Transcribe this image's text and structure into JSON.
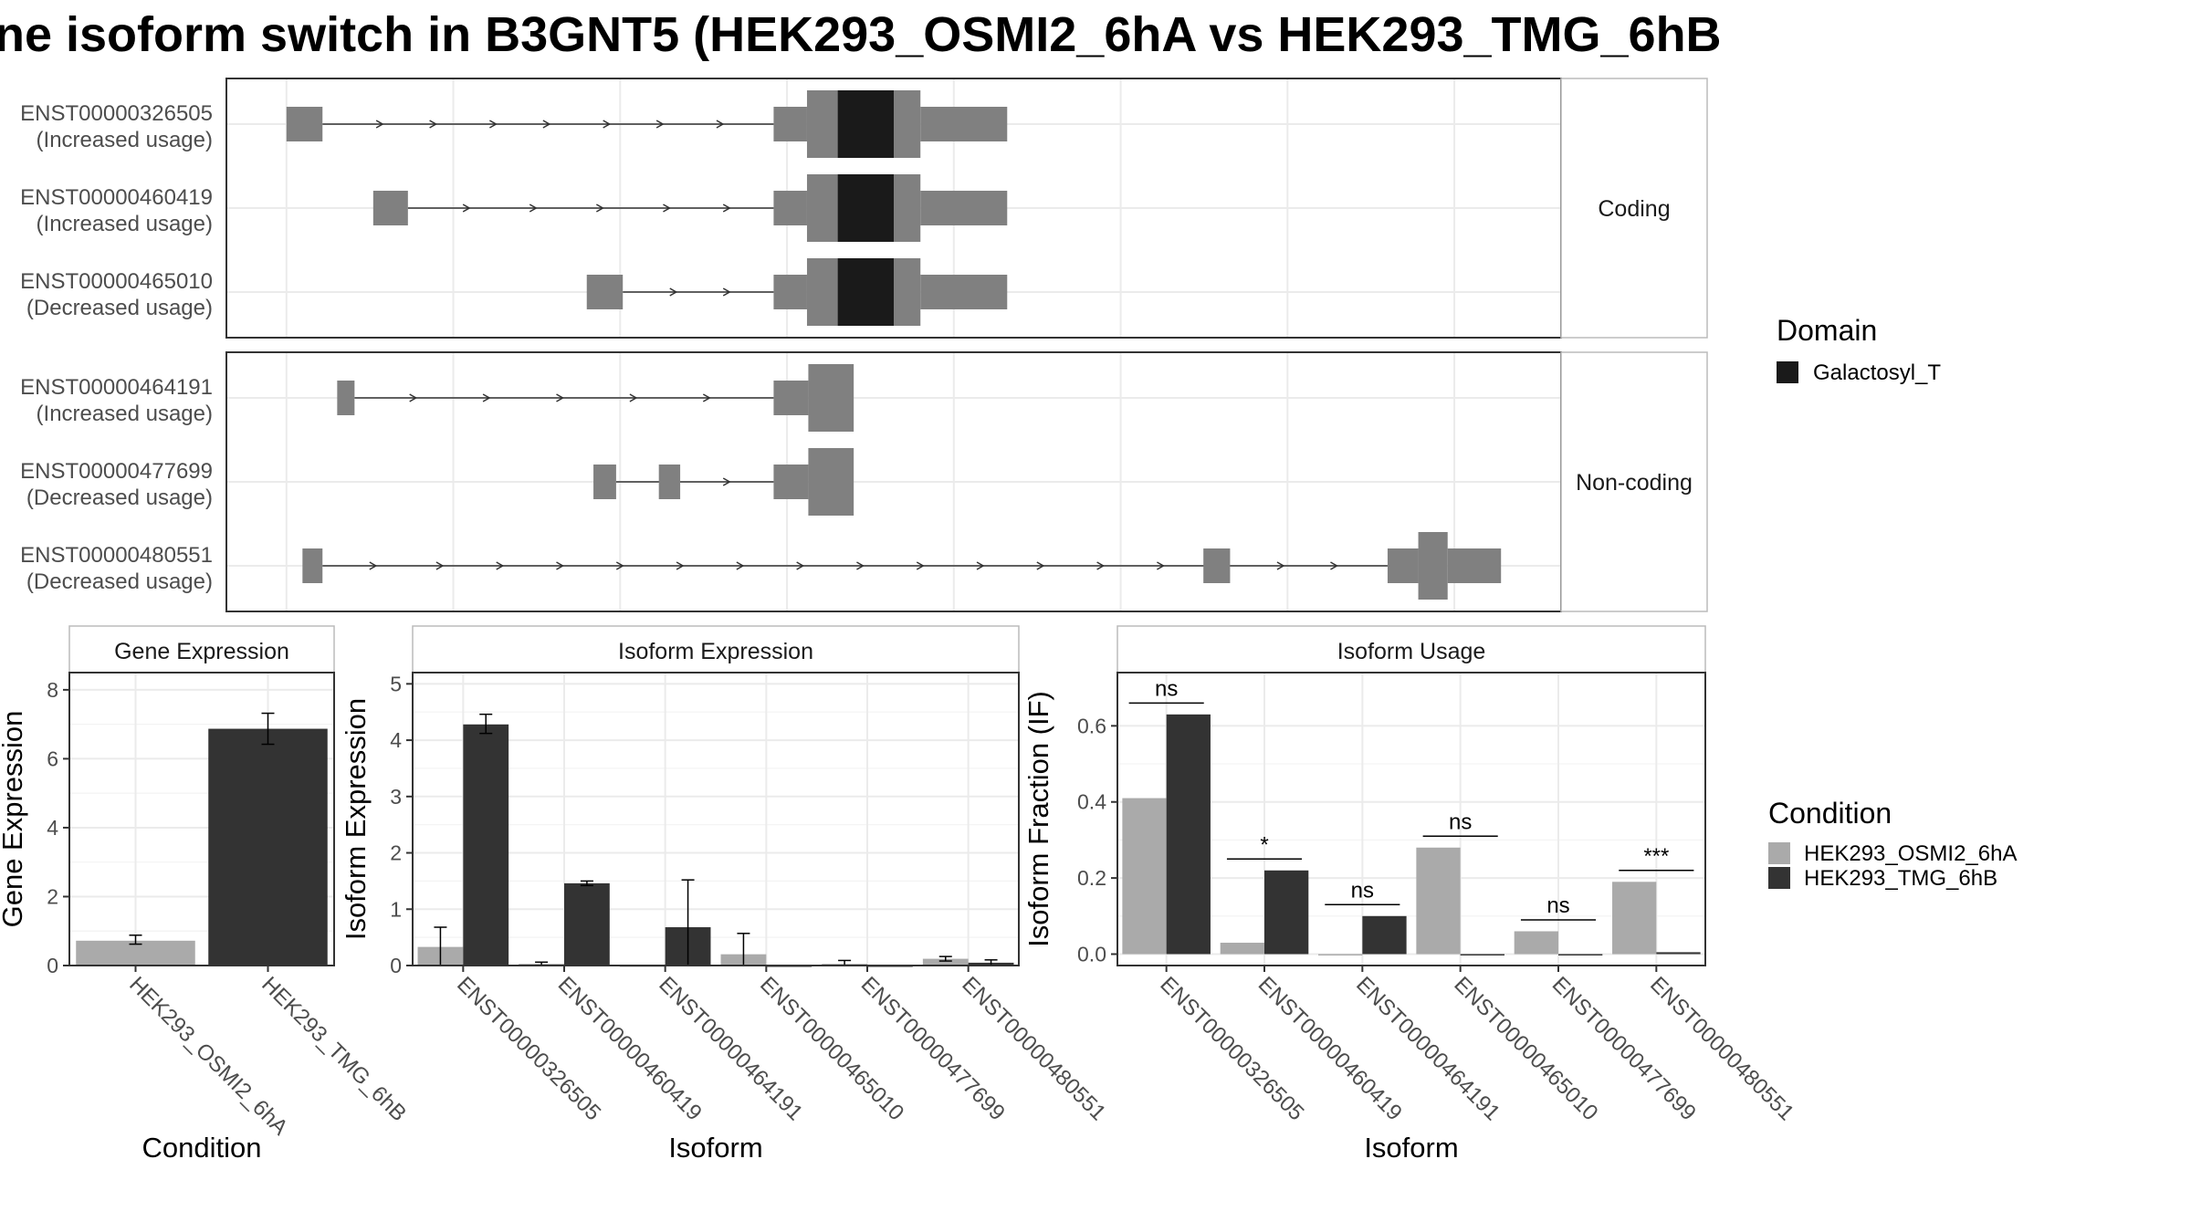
{
  "title": "ne isoform switch in B3GNT5 (HEK293_OSMI2_6hA vs HEK293_TMG_6hB",
  "colors": {
    "exon": "#808080",
    "domain": "#1a1a1a",
    "cond_a": "#aaaaaa",
    "cond_b": "#333333",
    "grid": "#ebebeb",
    "line": "#333333"
  },
  "legends": {
    "domain": {
      "title": "Domain",
      "items": [
        {
          "label": "Galactosyl_T",
          "color": "#1a1a1a"
        }
      ]
    },
    "condition": {
      "title": "Condition",
      "items": [
        {
          "label": "HEK293_OSMI2_6hA",
          "color": "#aaaaaa"
        },
        {
          "label": "HEK293_TMG_6hB",
          "color": "#333333"
        }
      ]
    }
  },
  "transcripts": {
    "x_range": [
      0,
      100
    ],
    "x_grid": [
      4.5,
      17,
      29.5,
      42,
      54.5,
      67,
      79.5,
      92
    ],
    "panels": [
      {
        "strip": "Coding",
        "tracks": [
          {
            "id": "ENST00000326505",
            "note": "(Increased usage)",
            "exons": [
              [
                4.5,
                7.2,
                "small"
              ],
              [
                41,
                43.5,
                "utr"
              ],
              [
                43.5,
                45.8,
                "cds"
              ],
              [
                45.8,
                50,
                "domain"
              ],
              [
                50,
                52,
                "cds"
              ],
              [
                52,
                58.5,
                "utr"
              ]
            ],
            "intron": [
              7.2,
              41
            ],
            "arrows": [
              11.5,
              15.5,
              20,
              24,
              28.5,
              32.5,
              37
            ]
          },
          {
            "id": "ENST00000460419",
            "note": "(Increased usage)",
            "exons": [
              [
                11,
                13.6,
                "small"
              ],
              [
                41,
                43.5,
                "utr"
              ],
              [
                43.5,
                45.8,
                "cds"
              ],
              [
                45.8,
                50,
                "domain"
              ],
              [
                50,
                52,
                "cds"
              ],
              [
                52,
                58.5,
                "utr"
              ]
            ],
            "intron": [
              13.6,
              41
            ],
            "arrows": [
              18,
              23,
              28,
              33,
              37.5
            ]
          },
          {
            "id": "ENST00000465010",
            "note": "(Decreased usage)",
            "exons": [
              [
                27,
                29.7,
                "small"
              ],
              [
                41,
                43.5,
                "utr"
              ],
              [
                43.5,
                45.8,
                "cds"
              ],
              [
                45.8,
                50,
                "domain"
              ],
              [
                50,
                52,
                "cds"
              ],
              [
                52,
                58.5,
                "utr"
              ]
            ],
            "intron": [
              29.7,
              41
            ],
            "arrows": [
              33.5,
              37.5
            ]
          }
        ]
      },
      {
        "strip": "Non-coding",
        "tracks": [
          {
            "id": "ENST00000464191",
            "note": "(Increased usage)",
            "exons": [
              [
                8.3,
                9.6,
                "small"
              ],
              [
                41,
                43.6,
                "utr"
              ],
              [
                43.6,
                47,
                "cds"
              ]
            ],
            "intron": [
              9.6,
              41
            ],
            "arrows": [
              14,
              19.5,
              25,
              30.5,
              36
            ]
          },
          {
            "id": "ENST00000477699",
            "note": "(Decreased usage)",
            "exons": [
              [
                27.5,
                29.2,
                "small"
              ],
              [
                32.4,
                34,
                "small"
              ],
              [
                41,
                43.6,
                "utr"
              ],
              [
                43.6,
                47,
                "cds"
              ]
            ],
            "intron": [
              29.2,
              41
            ],
            "arrows": [
              37.5
            ]
          },
          {
            "id": "ENST00000480551",
            "note": "(Decreased usage)",
            "exons": [
              [
                5.7,
                7.2,
                "small"
              ],
              [
                73.2,
                75.2,
                "small"
              ],
              [
                87,
                89.3,
                "utr"
              ],
              [
                89.3,
                91.5,
                "cds"
              ],
              [
                91.5,
                95.5,
                "utr"
              ]
            ],
            "intron": [
              7.2,
              87
            ],
            "arrows": [
              11,
              16,
              20.5,
              25,
              29.5,
              34,
              38.5,
              43,
              47.5,
              52,
              56.5,
              61,
              65.5,
              70,
              79,
              83
            ]
          }
        ]
      }
    ]
  },
  "chart_data": [
    {
      "type": "bar",
      "title": "Gene Expression",
      "xlabel": "Condition",
      "ylabel": "Gene Expression",
      "ylim": [
        0,
        8.5
      ],
      "yticks": [
        0,
        2,
        4,
        6,
        8
      ],
      "categories": [
        "HEK293_OSMI2_6hA",
        "HEK293_TMG_6hB"
      ],
      "values": [
        0.72,
        6.87
      ],
      "errors": [
        [
          0.62,
          0.88
        ],
        [
          6.42,
          7.32
        ]
      ]
    },
    {
      "type": "bar",
      "title": "Isoform Expression",
      "xlabel": "Isoform",
      "ylabel": "Isoform Expression",
      "ylim": [
        0,
        5.2
      ],
      "yticks": [
        0,
        1,
        2,
        3,
        4,
        5
      ],
      "categories": [
        "ENST00000326505",
        "ENST00000460419",
        "ENST00000464191",
        "ENST00000465010",
        "ENST00000477699",
        "ENST00000480551"
      ],
      "series": [
        {
          "name": "HEK293_OSMI2_6hA",
          "values": [
            0.33,
            0.03,
            0.0,
            0.2,
            0.03,
            0.12
          ],
          "errors": [
            [
              0.0,
              0.68
            ],
            [
              0.0,
              0.06
            ],
            [
              0.0,
              0.0
            ],
            [
              0.0,
              0.57
            ],
            [
              0.0,
              0.09
            ],
            [
              0.08,
              0.16
            ]
          ]
        },
        {
          "name": "HEK293_TMG_6hB",
          "values": [
            4.28,
            1.46,
            0.68,
            0.0,
            0.0,
            0.05
          ],
          "errors": [
            [
              4.12,
              4.46
            ],
            [
              1.42,
              1.5
            ],
            [
              0.0,
              1.52
            ],
            [
              0.0,
              0.0
            ],
            [
              0.0,
              0.0
            ],
            [
              0.0,
              0.1
            ]
          ]
        }
      ]
    },
    {
      "type": "bar",
      "title": "Isoform Usage",
      "xlabel": "Isoform",
      "ylabel": "Isoform Fraction (IF)",
      "ylim": [
        -0.03,
        0.74
      ],
      "yticks": [
        0.0,
        0.2,
        0.4,
        0.6
      ],
      "ytick_labels": [
        "0.0",
        "0.2",
        "0.4",
        "0.6"
      ],
      "categories": [
        "ENST00000326505",
        "ENST00000460419",
        "ENST00000464191",
        "ENST00000465010",
        "ENST00000477699",
        "ENST00000480551"
      ],
      "series": [
        {
          "name": "HEK293_OSMI2_6hA",
          "values": [
            0.41,
            0.03,
            0.0,
            0.28,
            0.06,
            0.19
          ]
        },
        {
          "name": "HEK293_TMG_6hB",
          "values": [
            0.63,
            0.22,
            0.1,
            0.0,
            0.0,
            0.005
          ]
        }
      ],
      "significance": [
        {
          "label": "ns",
          "y": 0.66
        },
        {
          "label": "*",
          "y": 0.25
        },
        {
          "label": "ns",
          "y": 0.13
        },
        {
          "label": "ns",
          "y": 0.31
        },
        {
          "label": "ns",
          "y": 0.09
        },
        {
          "label": "***",
          "y": 0.22
        }
      ]
    }
  ]
}
